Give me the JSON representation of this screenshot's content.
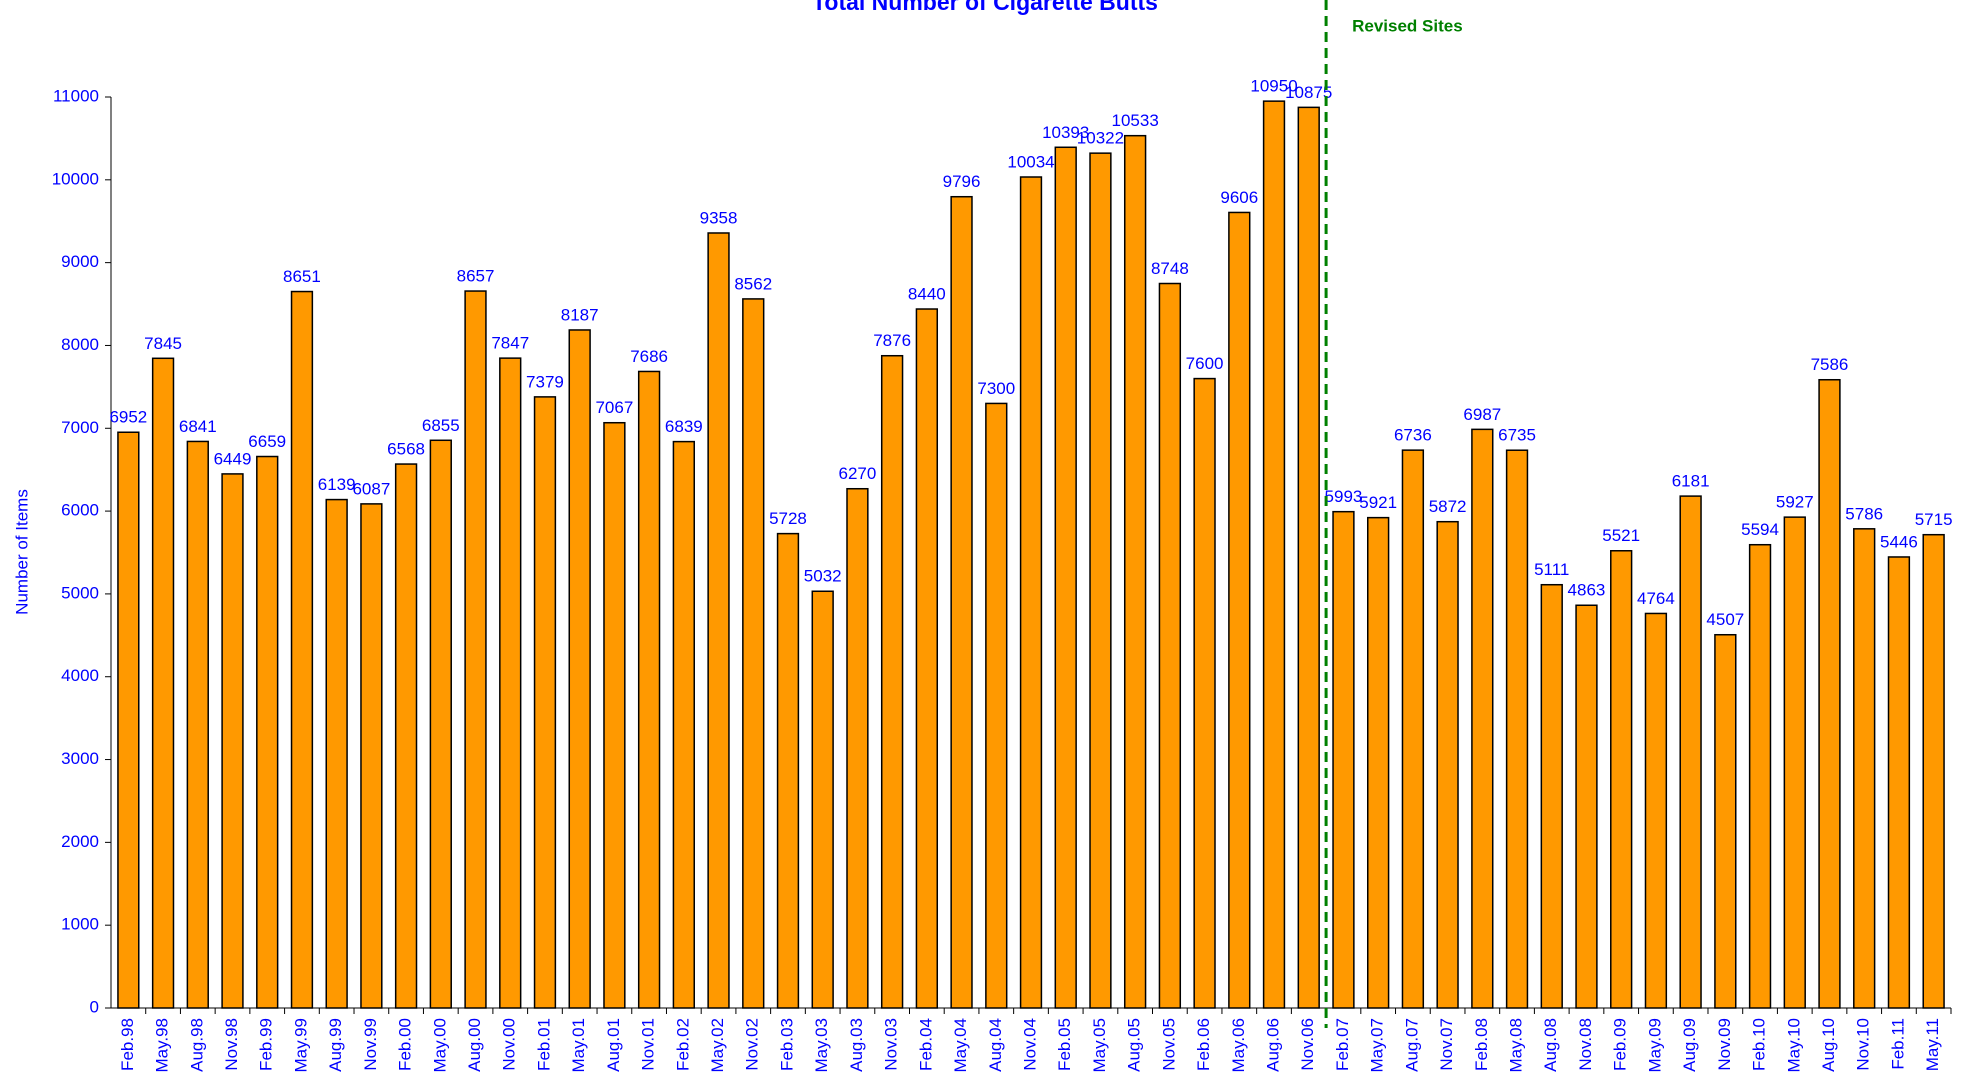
{
  "chart_data": {
    "type": "bar",
    "title": "Total Number of Cigarette Butts",
    "y_axis_label": "Number of Items",
    "categories": [
      "Feb.98",
      "May.98",
      "Aug.98",
      "Nov.98",
      "Feb.99",
      "May.99",
      "Aug.99",
      "Nov.99",
      "Feb.00",
      "May.00",
      "Aug.00",
      "Nov.00",
      "Feb.01",
      "May.01",
      "Aug.01",
      "Nov.01",
      "Feb.02",
      "May.02",
      "Nov.02",
      "Feb.03",
      "May.03",
      "Aug.03",
      "Nov.03",
      "Feb.04",
      "May.04",
      "Aug.04",
      "Nov.04",
      "Feb.05",
      "May.05",
      "Aug.05",
      "Nov.05",
      "Feb.06",
      "May.06",
      "Aug.06",
      "Nov.06",
      "Feb.07",
      "May.07",
      "Aug.07",
      "Nov.07",
      "Feb.08",
      "May.08",
      "Aug.08",
      "Nov.08",
      "Feb.09",
      "May.09",
      "Aug.09",
      "Nov.09",
      "Feb.10",
      "May.10",
      "Aug.10",
      "Nov.10",
      "Feb.11",
      "May.11"
    ],
    "values": [
      6952,
      7845,
      6841,
      6449,
      6659,
      8651,
      6139,
      6087,
      6568,
      6855,
      8657,
      7847,
      7379,
      8187,
      7067,
      7686,
      6839,
      9358,
      8562,
      5728,
      5032,
      6270,
      7876,
      8440,
      9796,
      7300,
      10034,
      10393,
      10322,
      10533,
      8748,
      7600,
      9606,
      10950,
      10875,
      5993,
      5921,
      6736,
      5872,
      6987,
      6735,
      5111,
      4863,
      5521,
      4764,
      6181,
      4507,
      5594,
      5927,
      7586,
      5786,
      5446,
      5715
    ],
    "color": "#ff9900",
    "ylim": [
      0,
      11000
    ],
    "yticks": [
      0,
      1000,
      2000,
      3000,
      4000,
      5000,
      6000,
      7000,
      8000,
      9000,
      10000,
      11000
    ],
    "grid": false,
    "annotations": [
      {
        "text": "Revised Sites",
        "at": "Feb.07",
        "color": "#008000"
      }
    ]
  }
}
